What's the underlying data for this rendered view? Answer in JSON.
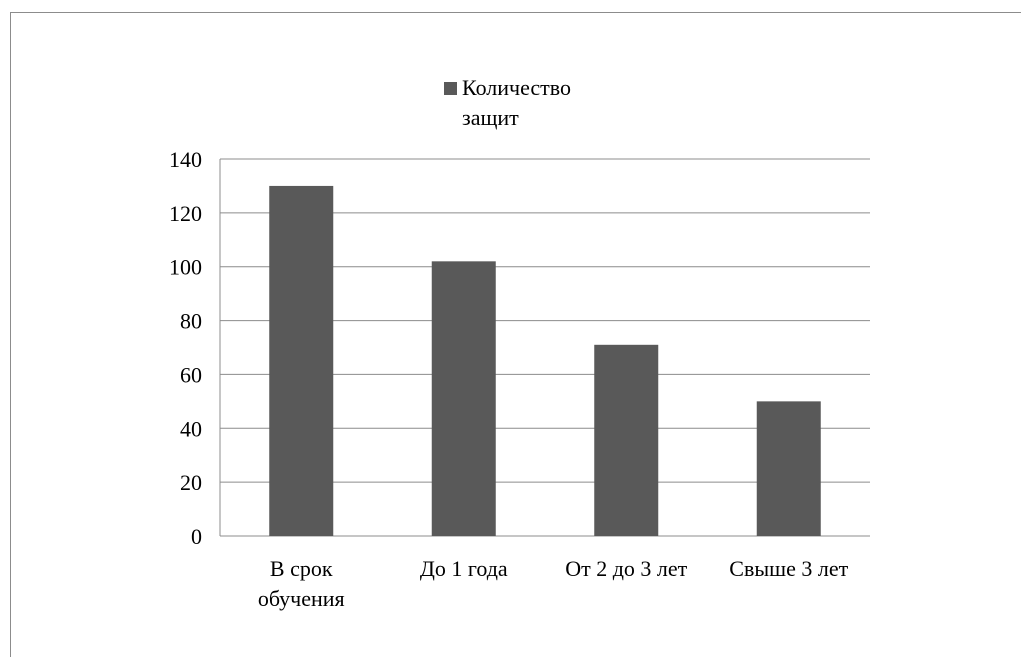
{
  "chart_data": {
    "type": "bar",
    "categories": [
      "В срок обучения",
      "До 1 года",
      "От 2 до 3 лет",
      "Свыше 3 лет"
    ],
    "category_lines": [
      [
        "В срок",
        "обучения"
      ],
      [
        "До 1 года"
      ],
      [
        "От 2 до 3 лет"
      ],
      [
        "Свыше 3 лет"
      ]
    ],
    "series": [
      {
        "name": "Количество защит",
        "values": [
          130,
          102,
          71,
          50
        ]
      }
    ],
    "title": "",
    "xlabel": "",
    "ylabel": "",
    "ylim": [
      0,
      140
    ],
    "yticks": [
      0,
      20,
      40,
      60,
      80,
      100,
      120,
      140
    ],
    "grid": true,
    "legend_position": "top-center",
    "bar_color": "#595959",
    "grid_color": "#8c8c8c"
  },
  "legend": {
    "label": "Количество защит"
  }
}
